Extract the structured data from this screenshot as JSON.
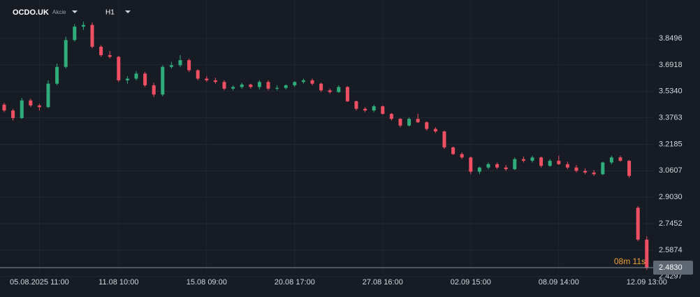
{
  "chart_data": {
    "type": "candlestick",
    "symbol": "OCDO.UK",
    "instrument_type": "Akcie",
    "timeframe": "H1",
    "categories": [
      null,
      null,
      null,
      null,
      "05.08.2025 11:00",
      null,
      null,
      null,
      null,
      null,
      null,
      null,
      null,
      "11.08 10:00",
      null,
      null,
      null,
      null,
      null,
      null,
      null,
      null,
      null,
      "15.08 09:00",
      null,
      null,
      null,
      null,
      null,
      null,
      null,
      null,
      null,
      "20.08 17:00",
      null,
      null,
      null,
      null,
      null,
      null,
      null,
      null,
      null,
      "27.08 16:00",
      null,
      null,
      null,
      null,
      null,
      null,
      null,
      null,
      null,
      "02.09 15:00",
      null,
      null,
      null,
      null,
      null,
      null,
      null,
      null,
      null,
      "08.09 14:00",
      null,
      null,
      null,
      null,
      null,
      null,
      null,
      null,
      null,
      "12.09 13:00"
    ],
    "open": [
      3.455,
      3.42,
      3.375,
      3.48,
      3.45,
      3.44,
      3.58,
      3.68,
      3.84,
      3.92,
      3.93,
      3.8,
      3.75,
      3.74,
      3.6,
      3.61,
      3.64,
      3.57,
      3.515,
      3.68,
      3.69,
      3.72,
      3.66,
      3.61,
      3.6,
      3.59,
      3.55,
      3.56,
      3.575,
      3.56,
      3.59,
      3.55,
      3.555,
      3.57,
      3.59,
      3.6,
      3.58,
      3.54,
      3.53,
      3.56,
      3.475,
      3.43,
      3.42,
      3.445,
      3.4,
      3.37,
      3.33,
      3.37,
      3.35,
      3.31,
      3.295,
      3.2,
      3.16,
      3.14,
      3.055,
      3.08,
      3.1,
      3.08,
      3.07,
      3.13,
      3.12,
      3.14,
      3.09,
      3.12,
      3.1,
      3.08,
      3.06,
      3.05,
      3.04,
      3.11,
      3.14,
      3.12,
      2.84,
      2.65
    ],
    "high": [
      3.465,
      3.43,
      3.495,
      3.49,
      3.46,
      3.6,
      3.7,
      3.86,
      3.935,
      3.95,
      3.945,
      3.81,
      3.775,
      3.745,
      3.625,
      3.655,
      3.65,
      3.585,
      3.69,
      3.71,
      3.75,
      3.73,
      3.665,
      3.625,
      3.615,
      3.6,
      3.57,
      3.585,
      3.58,
      3.6,
      3.6,
      3.57,
      3.575,
      3.595,
      3.61,
      3.61,
      3.585,
      3.55,
      3.57,
      3.565,
      3.48,
      3.44,
      3.455,
      3.45,
      3.405,
      3.375,
      3.38,
      3.4,
      3.355,
      3.32,
      3.3,
      3.205,
      3.17,
      3.145,
      3.085,
      3.11,
      3.11,
      3.095,
      3.14,
      3.145,
      3.15,
      3.145,
      3.13,
      3.15,
      3.115,
      3.095,
      3.075,
      3.065,
      3.115,
      3.15,
      3.15,
      3.125,
      2.85,
      2.67
    ],
    "low": [
      3.41,
      3.36,
      3.37,
      3.44,
      3.42,
      3.435,
      3.57,
      3.67,
      3.83,
      3.9,
      3.79,
      3.74,
      3.73,
      3.59,
      3.58,
      3.6,
      3.56,
      3.5,
      3.505,
      3.67,
      3.68,
      3.65,
      3.6,
      3.59,
      3.58,
      3.54,
      3.54,
      3.55,
      3.55,
      3.545,
      3.54,
      3.54,
      3.545,
      3.56,
      3.58,
      3.57,
      3.53,
      3.52,
      3.525,
      3.47,
      3.42,
      3.41,
      3.41,
      3.395,
      3.36,
      3.32,
      3.325,
      3.345,
      3.3,
      3.285,
      3.19,
      3.155,
      3.13,
      3.04,
      3.04,
      3.07,
      3.07,
      3.06,
      3.065,
      3.11,
      3.11,
      3.08,
      3.085,
      3.095,
      3.07,
      3.05,
      3.04,
      3.03,
      3.035,
      3.1,
      3.115,
      3.02,
      2.64,
      2.47
    ],
    "close": [
      3.42,
      3.375,
      3.48,
      3.45,
      3.44,
      3.58,
      3.68,
      3.84,
      3.92,
      3.93,
      3.8,
      3.75,
      3.74,
      3.6,
      3.61,
      3.64,
      3.57,
      3.515,
      3.68,
      3.69,
      3.72,
      3.66,
      3.61,
      3.6,
      3.59,
      3.55,
      3.56,
      3.575,
      3.56,
      3.59,
      3.55,
      3.555,
      3.57,
      3.59,
      3.6,
      3.58,
      3.54,
      3.53,
      3.56,
      3.475,
      3.43,
      3.42,
      3.445,
      3.4,
      3.37,
      3.33,
      3.37,
      3.35,
      3.31,
      3.295,
      3.2,
      3.16,
      3.14,
      3.055,
      3.08,
      3.1,
      3.08,
      3.07,
      3.13,
      3.12,
      3.14,
      3.09,
      3.12,
      3.1,
      3.08,
      3.06,
      3.05,
      3.04,
      3.11,
      3.14,
      3.12,
      3.03,
      2.65,
      2.483
    ],
    "up_color": "#2fae7c",
    "down_color": "#ef4f63",
    "ylim": [
      2.4204,
      4.0788
    ],
    "yticks": [
      3.8496,
      3.6918,
      {
        "value": 3.534,
        "label": "3.5340"
      },
      3.3763,
      3.2185,
      3.0607,
      {
        "value": 2.903,
        "label": "2.9030"
      },
      2.7452,
      2.5874,
      2.4297
    ],
    "grid": true,
    "last_price": {
      "value": 2.483,
      "label": "2.4830"
    },
    "countdown": "08m 11s"
  }
}
